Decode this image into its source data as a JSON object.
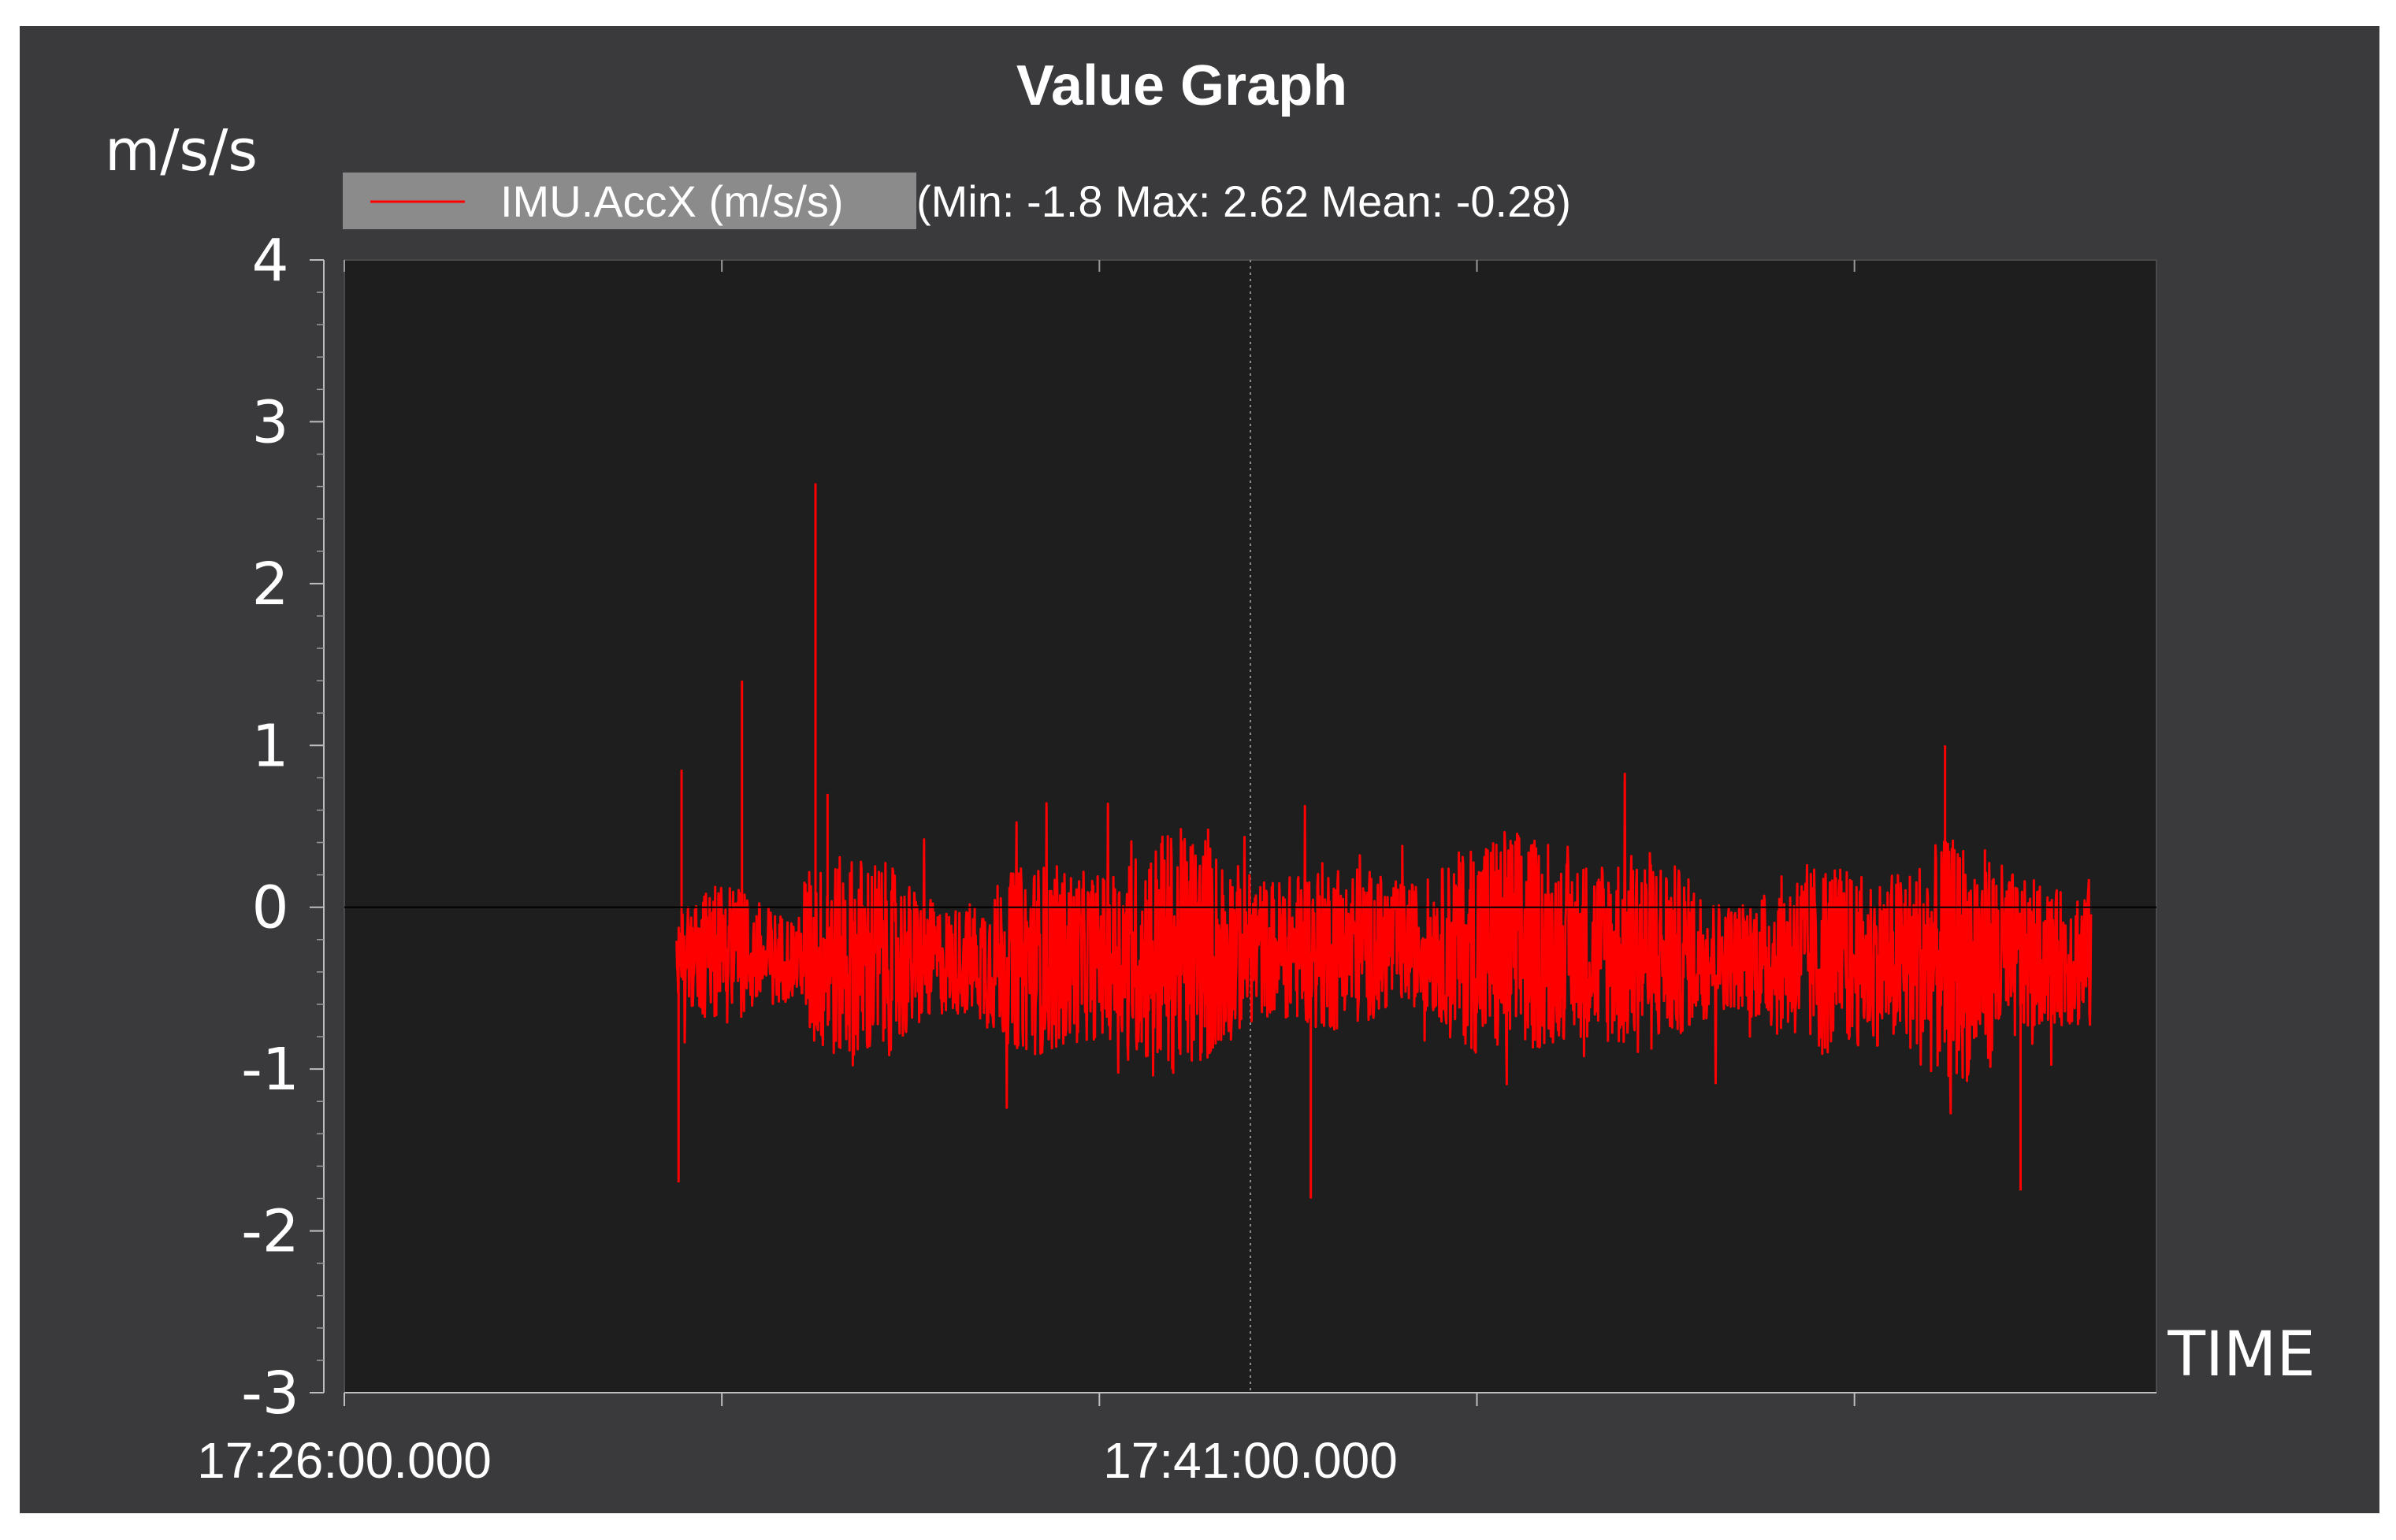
{
  "chart_data": {
    "type": "line",
    "title": "Value Graph",
    "ylabel": "m/s/s",
    "xlabel": "TIME",
    "ylim": [
      -3,
      4
    ],
    "y_ticks": [
      4,
      3,
      2,
      1,
      0,
      -1,
      -2,
      -3
    ],
    "x_range": [
      "17:26:00.000",
      "17:56:00.000"
    ],
    "x_tick_labels": [
      "17:26:00.000",
      "17:41:00.000"
    ],
    "grid": "major x gridline at 17:41:00.000; zero reference line",
    "legend_position": "top-left",
    "background_color": "#1e1e1f",
    "panel_color": "#3a3a3c",
    "series": [
      {
        "name": "IMU.AccX (m/s/s)",
        "legend_suffix": "(Min: -1.8 Max: 2.62 Mean: -0.28)",
        "color": "#ff0000",
        "data_start": "17:31:30.000",
        "data_end": "17:54:55.000",
        "min": -1.8,
        "max": 2.62,
        "mean": -0.28,
        "notable_points": [
          {
            "x": "17:31:32.000",
            "y": -1.7
          },
          {
            "x": "17:31:35.000",
            "y": 0.85
          },
          {
            "x": "17:32:35.000",
            "y": 1.4
          },
          {
            "x": "17:33:48.000",
            "y": 2.62
          },
          {
            "x": "17:34:00.000",
            "y": 0.7
          },
          {
            "x": "17:42:00.000",
            "y": -1.8
          },
          {
            "x": "17:52:30.000",
            "y": 1.0
          },
          {
            "x": "17:53:45.000",
            "y": -1.75
          }
        ]
      }
    ]
  }
}
